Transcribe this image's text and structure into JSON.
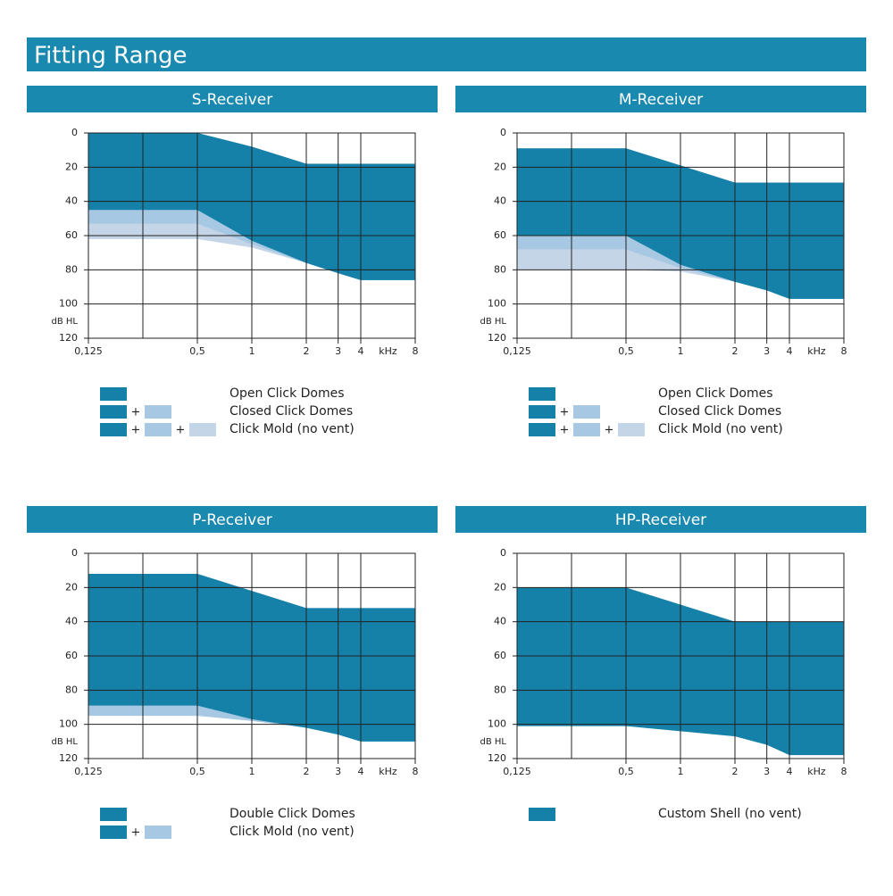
{
  "title": "Fitting Range",
  "chart_data": [
    {
      "type": "area",
      "title": "S-Receiver",
      "x": [
        0.125,
        0.25,
        0.5,
        1,
        2,
        3,
        4,
        8
      ],
      "xlim": [
        0.125,
        8
      ],
      "log_x": true,
      "xticks": [
        {
          "value": 0.125,
          "label": "0,125"
        },
        {
          "value": 0.5,
          "label": "0,5"
        },
        1,
        2,
        3,
        4,
        8
      ],
      "minor_xticks": [
        0.25
      ],
      "xlabel": "kHz",
      "ylim": [
        0,
        120
      ],
      "y_inverted": true,
      "yticks": [
        0,
        20,
        40,
        60,
        80,
        100,
        120
      ],
      "ylabel": "dB HL",
      "grid": true,
      "upper": [
        0,
        0,
        0,
        8,
        18,
        18,
        18,
        18
      ],
      "series": [
        {
          "name": "Open Click Domes",
          "color": "#1681a8",
          "values": [
            45,
            45,
            45,
            63,
            76,
            82,
            86,
            86
          ]
        },
        {
          "name": "Closed Click Domes",
          "color": "#a6c8e2",
          "values": [
            53,
            53,
            53,
            65,
            76,
            82,
            86,
            86
          ]
        },
        {
          "name": "Click Mold (no vent)",
          "color": "#c4d5e8",
          "values": [
            62,
            62,
            62,
            67,
            76,
            82,
            86,
            86
          ]
        }
      ],
      "legend_joiner": "+"
    },
    {
      "type": "area",
      "title": "M-Receiver",
      "x": [
        0.125,
        0.25,
        0.5,
        1,
        2,
        3,
        4,
        8
      ],
      "xlim": [
        0.125,
        8
      ],
      "log_x": true,
      "xticks": [
        {
          "value": 0.125,
          "label": "0,125"
        },
        {
          "value": 0.5,
          "label": "0,5"
        },
        1,
        2,
        3,
        4,
        8
      ],
      "minor_xticks": [
        0.25
      ],
      "xlabel": "kHz",
      "ylim": [
        0,
        120
      ],
      "y_inverted": true,
      "yticks": [
        0,
        20,
        40,
        60,
        80,
        100,
        120
      ],
      "ylabel": "dB HL",
      "grid": true,
      "upper": [
        9,
        9,
        9,
        19,
        29,
        29,
        29,
        29
      ],
      "series": [
        {
          "name": "Open Click Domes",
          "color": "#1681a8",
          "values": [
            60,
            60,
            60,
            77,
            87,
            92,
            97,
            97
          ]
        },
        {
          "name": "Closed Click Domes",
          "color": "#a6c8e2",
          "values": [
            68,
            68,
            68,
            79,
            87,
            92,
            97,
            97
          ]
        },
        {
          "name": "Click Mold (no vent)",
          "color": "#c4d5e8",
          "values": [
            80,
            80,
            80,
            81,
            87,
            92,
            97,
            97
          ]
        }
      ],
      "legend_joiner": "+"
    },
    {
      "type": "area",
      "title": "P-Receiver",
      "x": [
        0.125,
        0.25,
        0.5,
        1,
        2,
        3,
        4,
        8
      ],
      "xlim": [
        0.125,
        8
      ],
      "log_x": true,
      "xticks": [
        {
          "value": 0.125,
          "label": "0,125"
        },
        {
          "value": 0.5,
          "label": "0,5"
        },
        1,
        2,
        3,
        4,
        8
      ],
      "minor_xticks": [
        0.25
      ],
      "xlabel": "kHz",
      "ylim": [
        0,
        120
      ],
      "y_inverted": true,
      "yticks": [
        0,
        20,
        40,
        60,
        80,
        100,
        120
      ],
      "ylabel": "dB HL",
      "grid": true,
      "upper": [
        12,
        12,
        12,
        22,
        32,
        32,
        32,
        32
      ],
      "series": [
        {
          "name": "Double Click Domes",
          "color": "#1681a8",
          "values": [
            89,
            89,
            89,
            97,
            102,
            106,
            110,
            110
          ]
        },
        {
          "name": "Click Mold (no vent)",
          "color": "#a6c8e2",
          "values": [
            95,
            95,
            95,
            98,
            102,
            106,
            110,
            110
          ]
        }
      ],
      "legend_joiner": "+"
    },
    {
      "type": "area",
      "title": "HP-Receiver",
      "x": [
        0.125,
        0.25,
        0.5,
        1,
        2,
        3,
        4,
        8
      ],
      "xlim": [
        0.125,
        8
      ],
      "log_x": true,
      "xticks": [
        {
          "value": 0.125,
          "label": "0,125"
        },
        {
          "value": 0.5,
          "label": "0,5"
        },
        1,
        2,
        3,
        4,
        8
      ],
      "minor_xticks": [
        0.25
      ],
      "xlabel": "kHz",
      "ylim": [
        0,
        120
      ],
      "y_inverted": true,
      "yticks": [
        0,
        20,
        40,
        60,
        80,
        100,
        120
      ],
      "ylabel": "dB HL",
      "grid": true,
      "upper": [
        20,
        20,
        20,
        30,
        40,
        40,
        40,
        40
      ],
      "series": [
        {
          "name": "Custom Shell (no vent)",
          "color": "#1681a8",
          "values": [
            101,
            101,
            101,
            104,
            107,
            112,
            118,
            118
          ]
        }
      ],
      "legend_joiner": "+"
    }
  ]
}
